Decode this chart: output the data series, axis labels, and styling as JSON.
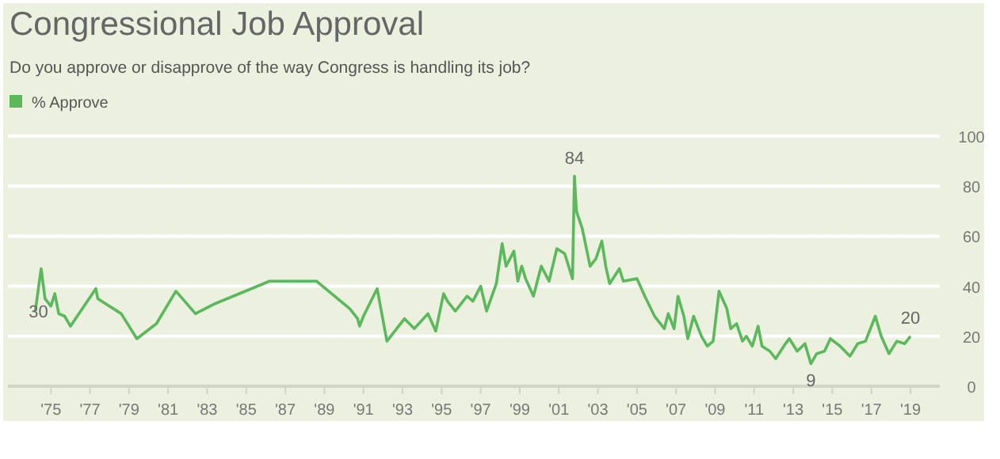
{
  "chart_data": {
    "type": "line",
    "title": "Congressional Job Approval",
    "subtitle": "Do you approve or disapprove of the way Congress is handling its job?",
    "legend": "top left",
    "grid": "y",
    "marker": "none",
    "line_style": "solid",
    "xlim": [
      1972.8,
      2020.5
    ],
    "ylim": [
      0,
      100
    ],
    "yticks": [
      0,
      20,
      40,
      60,
      80,
      100
    ],
    "xticks": [
      {
        "value": 1975,
        "label": "'75"
      },
      {
        "value": 1977,
        "label": "'77"
      },
      {
        "value": 1979,
        "label": "'79"
      },
      {
        "value": 1981,
        "label": "'81"
      },
      {
        "value": 1983,
        "label": "'83"
      },
      {
        "value": 1985,
        "label": "'85"
      },
      {
        "value": 1987,
        "label": "'87"
      },
      {
        "value": 1989,
        "label": "'89"
      },
      {
        "value": 1991,
        "label": "'91"
      },
      {
        "value": 1993,
        "label": "'93"
      },
      {
        "value": 1995,
        "label": "'95"
      },
      {
        "value": 1997,
        "label": "'97"
      },
      {
        "value": 1999,
        "label": "'99"
      },
      {
        "value": 2001,
        "label": "'01"
      },
      {
        "value": 2003,
        "label": "'03"
      },
      {
        "value": 2005,
        "label": "'05"
      },
      {
        "value": 2007,
        "label": "'07"
      },
      {
        "value": 2009,
        "label": "'09"
      },
      {
        "value": 2011,
        "label": "'11"
      },
      {
        "value": 2013,
        "label": "'13"
      },
      {
        "value": 2015,
        "label": "'15"
      },
      {
        "value": 2017,
        "label": "'17"
      },
      {
        "value": 2019,
        "label": "'19"
      }
    ],
    "annotations": [
      {
        "text": "30",
        "x": 1974.2,
        "y": 30
      },
      {
        "text": "84",
        "x": 2001.8,
        "y": 84
      },
      {
        "text": "9",
        "x": 2013.9,
        "y": 9
      },
      {
        "text": "20",
        "x": 2019.0,
        "y": 20
      }
    ],
    "series": [
      {
        "name": "% Approve",
        "color": "#5cb85c",
        "x": [
          1974.2,
          1974.5,
          1974.7,
          1975.0,
          1975.2,
          1975.4,
          1975.7,
          1976.0,
          1977.3,
          1977.4,
          1978.6,
          1979.4,
          1980.4,
          1981.4,
          1982.4,
          1983.4,
          1986.2,
          1988.6,
          1990.3,
          1990.7,
          1990.8,
          1991.0,
          1991.7,
          1992.2,
          1993.1,
          1993.6,
          1994.3,
          1994.7,
          1995.1,
          1995.3,
          1995.7,
          1996.3,
          1996.6,
          1997.0,
          1997.3,
          1997.8,
          1998.1,
          1998.3,
          1998.7,
          1998.9,
          1999.1,
          1999.3,
          1999.7,
          2000.1,
          2000.5,
          2000.9,
          2001.3,
          2001.7,
          2001.8,
          2001.9,
          2002.2,
          2002.6,
          2002.9,
          2003.2,
          2003.4,
          2003.6,
          2004.1,
          2004.3,
          2005.0,
          2005.4,
          2005.9,
          2006.4,
          2006.6,
          2006.9,
          2007.1,
          2007.4,
          2007.6,
          2007.9,
          2008.3,
          2008.6,
          2008.9,
          2009.2,
          2009.6,
          2009.8,
          2010.1,
          2010.4,
          2010.6,
          2010.9,
          2011.2,
          2011.4,
          2011.8,
          2012.1,
          2012.6,
          2012.8,
          2013.2,
          2013.6,
          2013.9,
          2014.2,
          2014.6,
          2014.9,
          2015.4,
          2015.9,
          2016.3,
          2016.7,
          2017.2,
          2017.5,
          2017.9,
          2018.3,
          2018.7,
          2019.0
        ],
        "values": [
          30,
          47,
          35,
          32,
          37,
          29,
          28,
          24,
          39,
          35,
          29,
          19,
          25,
          38,
          29,
          33,
          42,
          42,
          31,
          27,
          24,
          28,
          39,
          18,
          27,
          23,
          29,
          22,
          37,
          34,
          30,
          36,
          34,
          40,
          30,
          41,
          57,
          48,
          54,
          42,
          48,
          43,
          36,
          48,
          42,
          55,
          53,
          43,
          84,
          70,
          63,
          48,
          51,
          58,
          48,
          41,
          47,
          42,
          43,
          36,
          28,
          23,
          29,
          23,
          36,
          28,
          19,
          28,
          20,
          16,
          18,
          38,
          31,
          23,
          25,
          18,
          20,
          16,
          24,
          16,
          14,
          11,
          17,
          19,
          14,
          17,
          9,
          13,
          14,
          19,
          16,
          12,
          17,
          18,
          28,
          20,
          13,
          18,
          17,
          20
        ]
      }
    ]
  }
}
